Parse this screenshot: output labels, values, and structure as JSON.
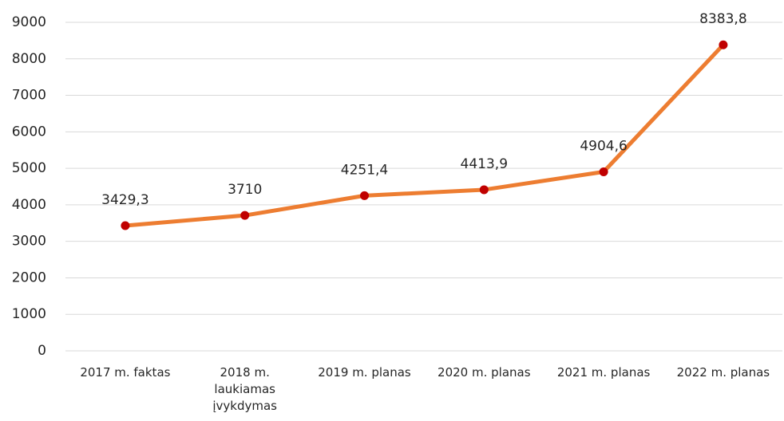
{
  "chart_data": {
    "type": "line",
    "categories": [
      "2017 m. faktas",
      "2018 m. laukiamas įvykdymas",
      "2019 m. planas",
      "2020 m. planas",
      "2021 m. planas",
      "2022 m. planas"
    ],
    "series": [
      {
        "name": "",
        "color": "#ED7D31",
        "marker_color": "#C00000",
        "values": [
          3429.3,
          3710,
          4251.4,
          4413.9,
          4904.6,
          8383.8
        ],
        "value_labels": [
          "3429,3",
          "3710",
          "4251,4",
          "4413,9",
          "4904,6",
          "8383,8"
        ]
      }
    ],
    "ylim": [
      0,
      9000
    ],
    "yticks": [
      0,
      1000,
      2000,
      3000,
      4000,
      5000,
      6000,
      7000,
      8000,
      9000
    ],
    "grid": true
  }
}
